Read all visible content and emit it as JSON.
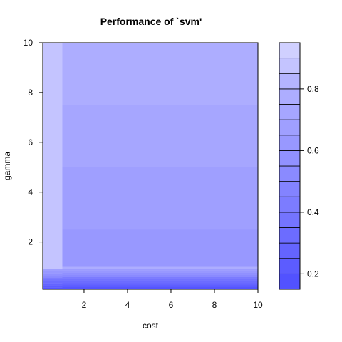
{
  "chart_data": {
    "type": "heatmap",
    "title": "Performance of `svm'",
    "xlabel": "cost",
    "ylabel": "gamma",
    "xlim": [
      0.1,
      10
    ],
    "ylim": [
      0.1,
      10
    ],
    "x_ticks": [
      2,
      4,
      6,
      8,
      10
    ],
    "y_ticks": [
      2,
      4,
      6,
      8,
      10
    ],
    "legend_ticks": [
      0.2,
      0.4,
      0.6,
      0.8
    ],
    "legend_range": [
      0.15,
      0.95
    ],
    "legend_placement": "right",
    "color_low": "#5050ff",
    "color_high": "#d0d0ff",
    "bands": [
      {
        "from": 0.15,
        "to": 0.2,
        "color": "#5252ff"
      },
      {
        "from": 0.2,
        "to": 0.25,
        "color": "#5c5cff"
      },
      {
        "from": 0.25,
        "to": 0.3,
        "color": "#6464ff"
      },
      {
        "from": 0.3,
        "to": 0.35,
        "color": "#6c6cff"
      },
      {
        "from": 0.35,
        "to": 0.4,
        "color": "#7474ff"
      },
      {
        "from": 0.4,
        "to": 0.45,
        "color": "#7c7cff"
      },
      {
        "from": 0.45,
        "to": 0.5,
        "color": "#8383ff"
      },
      {
        "from": 0.5,
        "to": 0.55,
        "color": "#8a8aff"
      },
      {
        "from": 0.55,
        "to": 0.6,
        "color": "#9191ff"
      },
      {
        "from": 0.6,
        "to": 0.65,
        "color": "#9898ff"
      },
      {
        "from": 0.65,
        "to": 0.7,
        "color": "#9f9fff"
      },
      {
        "from": 0.7,
        "to": 0.75,
        "color": "#a6a6ff"
      },
      {
        "from": 0.75,
        "to": 0.8,
        "color": "#adadff"
      },
      {
        "from": 0.8,
        "to": 0.85,
        "color": "#b4b4ff"
      },
      {
        "from": 0.85,
        "to": 0.9,
        "color": "#c4c4ff"
      },
      {
        "from": 0.9,
        "to": 0.95,
        "color": "#d0d0ff"
      }
    ],
    "regions": [
      {
        "cost_range": [
          1,
          10
        ],
        "gamma_range": [
          0.1,
          0.9
        ],
        "value": 0.22,
        "note": "dark gradient band at low gamma"
      },
      {
        "cost_range": [
          1,
          10
        ],
        "gamma_range": [
          1,
          2.5
        ],
        "value": 0.62
      },
      {
        "cost_range": [
          1,
          10
        ],
        "gamma_range": [
          2.5,
          5
        ],
        "value": 0.67
      },
      {
        "cost_range": [
          1,
          10
        ],
        "gamma_range": [
          5,
          7.5
        ],
        "value": 0.72
      },
      {
        "cost_range": [
          1,
          10
        ],
        "gamma_range": [
          7.5,
          9.7
        ],
        "value": 0.77
      },
      {
        "cost_range": [
          0.1,
          1
        ],
        "gamma_range": [
          0.1,
          10
        ],
        "value": 0.85
      }
    ]
  }
}
